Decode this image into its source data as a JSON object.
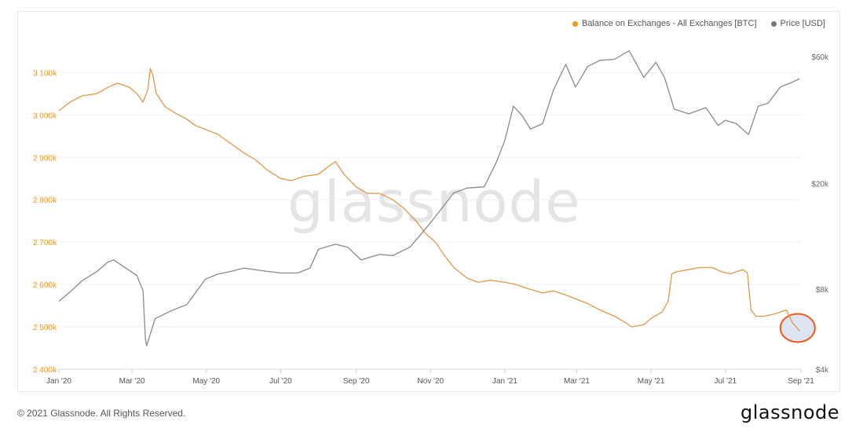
{
  "legend": {
    "balance_label": "Balance on Exchanges - All Exchanges [BTC]",
    "price_label": "Price [USD]"
  },
  "watermark": "glassnode",
  "footer": {
    "copyright": "© 2021 Glassnode. All Rights Reserved.",
    "brand": "glassnode"
  },
  "colors": {
    "balance": "#f7931a",
    "balance_line": "#e0984a",
    "price": "#8a8a8a",
    "highlight_stroke": "#f05a1a",
    "highlight_fill": "#dde4f2"
  },
  "chart_data": {
    "type": "line",
    "x_tick_labels": [
      "Jan '20",
      "Mar '20",
      "May '20",
      "Jul '20",
      "Sep '20",
      "Nov '20",
      "Jan '21",
      "Mar '21",
      "May '21",
      "Jul '21",
      "Sep '21"
    ],
    "y_left": {
      "ticks": [
        2400000,
        2500000,
        2600000,
        2700000,
        2800000,
        2900000,
        3000000,
        3100000
      ],
      "tick_labels": [
        "2 400k",
        "2 500k",
        "2 600k",
        "2 700k",
        "2 800k",
        "2 900k",
        "3 000k",
        "3 100k"
      ],
      "range": [
        2400000,
        3160000
      ]
    },
    "y_right": {
      "scale": "log",
      "ticks": [
        4000,
        8000,
        20000,
        60000
      ],
      "tick_labels": [
        "$4k",
        "$8k",
        "$20k",
        "$60k"
      ],
      "range": [
        4000,
        65000
      ]
    },
    "series": [
      {
        "name": "Balance on Exchanges - All Exchanges [BTC]",
        "axis": "left",
        "points": [
          [
            "2020-01-01",
            3010000
          ],
          [
            "2020-01-10",
            3030000
          ],
          [
            "2020-01-20",
            3045000
          ],
          [
            "2020-02-01",
            3050000
          ],
          [
            "2020-02-10",
            3065000
          ],
          [
            "2020-02-18",
            3075000
          ],
          [
            "2020-02-28",
            3065000
          ],
          [
            "2020-03-05",
            3050000
          ],
          [
            "2020-03-10",
            3030000
          ],
          [
            "2020-03-14",
            3060000
          ],
          [
            "2020-03-16",
            3110000
          ],
          [
            "2020-03-18",
            3095000
          ],
          [
            "2020-03-21",
            3050000
          ],
          [
            "2020-03-28",
            3020000
          ],
          [
            "2020-04-05",
            3005000
          ],
          [
            "2020-04-15",
            2990000
          ],
          [
            "2020-04-22",
            2975000
          ],
          [
            "2020-05-01",
            2965000
          ],
          [
            "2020-05-10",
            2955000
          ],
          [
            "2020-05-20",
            2935000
          ],
          [
            "2020-06-01",
            2910000
          ],
          [
            "2020-06-10",
            2895000
          ],
          [
            "2020-06-20",
            2870000
          ],
          [
            "2020-07-01",
            2850000
          ],
          [
            "2020-07-10",
            2845000
          ],
          [
            "2020-07-20",
            2855000
          ],
          [
            "2020-08-01",
            2860000
          ],
          [
            "2020-08-10",
            2880000
          ],
          [
            "2020-08-15",
            2890000
          ],
          [
            "2020-08-22",
            2860000
          ],
          [
            "2020-09-01",
            2830000
          ],
          [
            "2020-09-10",
            2815000
          ],
          [
            "2020-09-20",
            2815000
          ],
          [
            "2020-10-01",
            2800000
          ],
          [
            "2020-10-10",
            2780000
          ],
          [
            "2020-10-20",
            2750000
          ],
          [
            "2020-10-28",
            2720000
          ],
          [
            "2020-11-05",
            2700000
          ],
          [
            "2020-11-12",
            2670000
          ],
          [
            "2020-11-20",
            2640000
          ],
          [
            "2020-12-01",
            2615000
          ],
          [
            "2020-12-10",
            2605000
          ],
          [
            "2020-12-20",
            2610000
          ],
          [
            "2021-01-01",
            2605000
          ],
          [
            "2021-01-10",
            2600000
          ],
          [
            "2021-01-20",
            2590000
          ],
          [
            "2021-02-01",
            2580000
          ],
          [
            "2021-02-10",
            2585000
          ],
          [
            "2021-02-20",
            2575000
          ],
          [
            "2021-03-01",
            2565000
          ],
          [
            "2021-03-10",
            2555000
          ],
          [
            "2021-03-20",
            2540000
          ],
          [
            "2021-04-01",
            2525000
          ],
          [
            "2021-04-10",
            2510000
          ],
          [
            "2021-04-15",
            2500000
          ],
          [
            "2021-04-25",
            2505000
          ],
          [
            "2021-05-01",
            2520000
          ],
          [
            "2021-05-10",
            2535000
          ],
          [
            "2021-05-15",
            2560000
          ],
          [
            "2021-05-18",
            2625000
          ],
          [
            "2021-05-22",
            2630000
          ],
          [
            "2021-06-01",
            2635000
          ],
          [
            "2021-06-10",
            2640000
          ],
          [
            "2021-06-20",
            2640000
          ],
          [
            "2021-06-28",
            2630000
          ],
          [
            "2021-07-05",
            2625000
          ],
          [
            "2021-07-10",
            2630000
          ],
          [
            "2021-07-15",
            2635000
          ],
          [
            "2021-07-19",
            2628000
          ],
          [
            "2021-07-22",
            2540000
          ],
          [
            "2021-07-26",
            2525000
          ],
          [
            "2021-08-01",
            2525000
          ],
          [
            "2021-08-10",
            2530000
          ],
          [
            "2021-08-20",
            2540000
          ],
          [
            "2021-08-25",
            2510000
          ],
          [
            "2021-08-31",
            2490000
          ]
        ]
      },
      {
        "name": "Price [USD]",
        "axis": "right",
        "points": [
          [
            "2020-01-01",
            7200
          ],
          [
            "2020-01-10",
            7800
          ],
          [
            "2020-01-20",
            8600
          ],
          [
            "2020-02-01",
            9300
          ],
          [
            "2020-02-10",
            10100
          ],
          [
            "2020-02-15",
            10300
          ],
          [
            "2020-02-25",
            9600
          ],
          [
            "2020-03-05",
            9000
          ],
          [
            "2020-03-10",
            7900
          ],
          [
            "2020-03-12",
            5200
          ],
          [
            "2020-03-13",
            4900
          ],
          [
            "2020-03-20",
            6200
          ],
          [
            "2020-04-01",
            6600
          ],
          [
            "2020-04-15",
            7000
          ],
          [
            "2020-04-30",
            8700
          ],
          [
            "2020-05-10",
            9100
          ],
          [
            "2020-05-20",
            9300
          ],
          [
            "2020-06-01",
            9600
          ],
          [
            "2020-06-15",
            9400
          ],
          [
            "2020-07-01",
            9200
          ],
          [
            "2020-07-15",
            9200
          ],
          [
            "2020-07-25",
            9600
          ],
          [
            "2020-08-01",
            11300
          ],
          [
            "2020-08-15",
            11800
          ],
          [
            "2020-08-25",
            11500
          ],
          [
            "2020-09-05",
            10300
          ],
          [
            "2020-09-20",
            10800
          ],
          [
            "2020-10-01",
            10700
          ],
          [
            "2020-10-15",
            11500
          ],
          [
            "2020-10-25",
            13000
          ],
          [
            "2020-11-05",
            15000
          ],
          [
            "2020-11-20",
            18400
          ],
          [
            "2020-12-01",
            19200
          ],
          [
            "2020-12-15",
            19400
          ],
          [
            "2020-12-25",
            24000
          ],
          [
            "2021-01-01",
            29000
          ],
          [
            "2021-01-08",
            39000
          ],
          [
            "2021-01-15",
            36000
          ],
          [
            "2021-01-22",
            32000
          ],
          [
            "2021-02-01",
            33500
          ],
          [
            "2021-02-10",
            45000
          ],
          [
            "2021-02-20",
            56000
          ],
          [
            "2021-02-28",
            46000
          ],
          [
            "2021-03-10",
            55000
          ],
          [
            "2021-03-20",
            58000
          ],
          [
            "2021-04-01",
            58500
          ],
          [
            "2021-04-13",
            63000
          ],
          [
            "2021-04-25",
            50000
          ],
          [
            "2021-05-05",
            57000
          ],
          [
            "2021-05-12",
            50000
          ],
          [
            "2021-05-20",
            38000
          ],
          [
            "2021-06-01",
            36500
          ],
          [
            "2021-06-15",
            38500
          ],
          [
            "2021-06-25",
            33000
          ],
          [
            "2021-07-01",
            34500
          ],
          [
            "2021-07-10",
            33500
          ],
          [
            "2021-07-20",
            30500
          ],
          [
            "2021-07-28",
            39000
          ],
          [
            "2021-08-05",
            40000
          ],
          [
            "2021-08-15",
            46000
          ],
          [
            "2021-08-25",
            48000
          ],
          [
            "2021-08-31",
            49500
          ]
        ]
      }
    ],
    "annotation": {
      "type": "circle",
      "x": "2021-08-28",
      "y_left": 2490000
    }
  }
}
